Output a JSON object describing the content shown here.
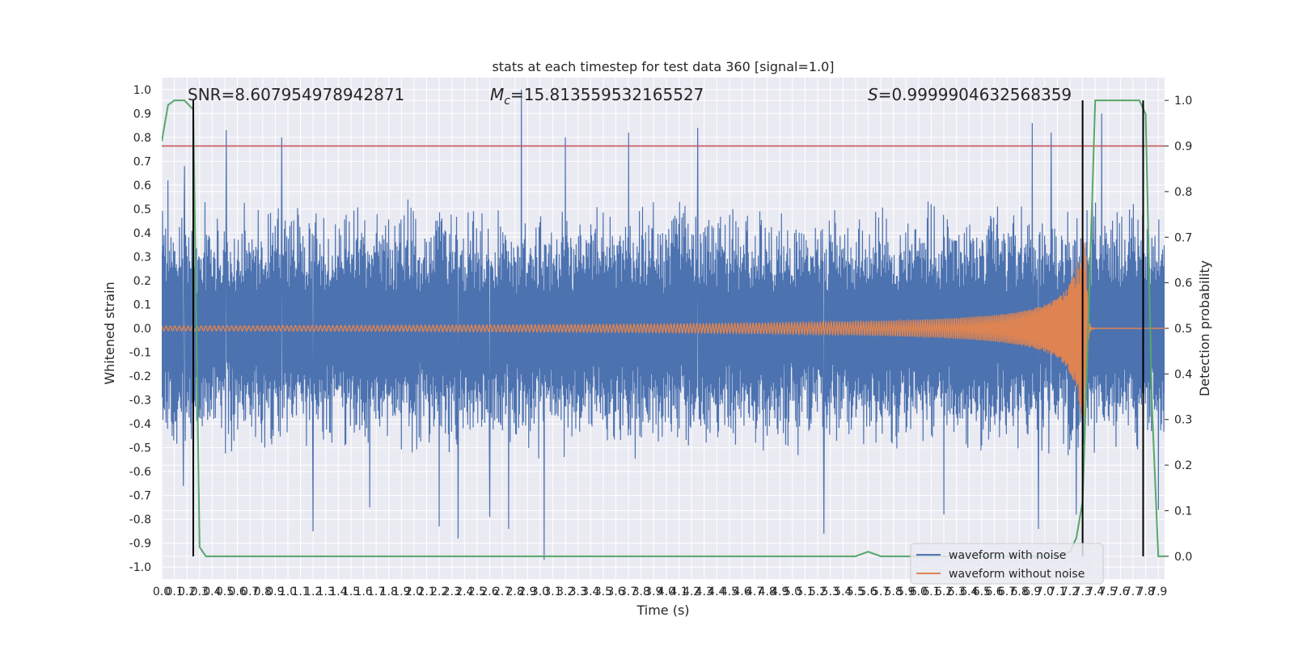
{
  "chart_data": {
    "type": "line",
    "title": "stats at each timestep for test data 360 [signal=1.0]",
    "xlabel": "Time (s)",
    "ylabel": "Whitened strain",
    "y2label": "Detection probability",
    "xlim": [
      0.0,
      7.95
    ],
    "ylim": [
      -1.05,
      1.05
    ],
    "y2lim": [
      -0.05,
      1.05
    ],
    "grid": true,
    "legend_position": "lower-right",
    "x_ticks": [
      "0.0",
      "0.1",
      "0.2",
      "0.3",
      "0.4",
      "0.5",
      "0.6",
      "0.7",
      "0.8",
      "0.9",
      "1.0",
      "1.1",
      "1.2",
      "1.3",
      "1.4",
      "1.5",
      "1.6",
      "1.7",
      "1.8",
      "1.9",
      "2.0",
      "2.1",
      "2.2",
      "2.3",
      "2.4",
      "2.5",
      "2.6",
      "2.7",
      "2.8",
      "2.9",
      "3.0",
      "3.1",
      "3.2",
      "3.3",
      "3.4",
      "3.5",
      "3.6",
      "3.7",
      "3.8",
      "3.9",
      "4.0",
      "4.1",
      "4.2",
      "4.3",
      "4.4",
      "4.5",
      "4.6",
      "4.7",
      "4.8",
      "4.9",
      "5.0",
      "5.1",
      "5.2",
      "5.3",
      "5.4",
      "5.5",
      "5.6",
      "5.7",
      "5.8",
      "5.9",
      "6.0",
      "6.1",
      "6.2",
      "6.3",
      "6.4",
      "6.5",
      "6.6",
      "6.7",
      "6.8",
      "6.9",
      "7.0",
      "7.1",
      "7.2",
      "7.3",
      "7.4",
      "7.5",
      "7.6",
      "7.7",
      "7.8",
      "7.9"
    ],
    "y_ticks": [
      "1.0",
      "0.9",
      "0.8",
      "0.7",
      "0.6",
      "0.5",
      "0.4",
      "0.3",
      "0.2",
      "0.1",
      "0.0",
      "-0.1",
      "-0.2",
      "-0.3",
      "-0.4",
      "-0.5",
      "-0.6",
      "-0.7",
      "-0.8",
      "-0.9",
      "-1.0"
    ],
    "y2_ticks": [
      "1.0",
      "0.9",
      "0.8",
      "0.7",
      "0.6",
      "0.5",
      "0.4",
      "0.3",
      "0.2",
      "0.1",
      "0.0"
    ],
    "annotations": {
      "snr": "SNR=8.607954978942871",
      "mc_symbol": "M",
      "mc_sub": "c",
      "mc_value": "=15.813559532165527",
      "s_symbol": "S",
      "s_value": "=0.9999904632568359"
    },
    "series": [
      {
        "name": "waveform with noise",
        "color": "#4c72b0",
        "style": "noise",
        "typical_peak_range": [
          0.25,
          0.55
        ],
        "peaks": [
          {
            "x": 0.05,
            "y": 0.62
          },
          {
            "x": 0.17,
            "y": -0.66
          },
          {
            "x": 0.18,
            "y": 0.68
          },
          {
            "x": 0.51,
            "y": 0.83
          },
          {
            "x": 0.95,
            "y": 0.8
          },
          {
            "x": 1.2,
            "y": -0.85
          },
          {
            "x": 1.65,
            "y": -0.75
          },
          {
            "x": 2.2,
            "y": -0.83
          },
          {
            "x": 2.35,
            "y": -0.88
          },
          {
            "x": 2.6,
            "y": -0.79
          },
          {
            "x": 2.75,
            "y": -0.84
          },
          {
            "x": 2.85,
            "y": 1.0
          },
          {
            "x": 3.03,
            "y": -0.97
          },
          {
            "x": 3.2,
            "y": 0.8
          },
          {
            "x": 3.7,
            "y": 0.82
          },
          {
            "x": 4.25,
            "y": 0.84
          },
          {
            "x": 5.25,
            "y": -0.86
          },
          {
            "x": 6.2,
            "y": -0.78
          },
          {
            "x": 6.9,
            "y": 0.86
          },
          {
            "x": 6.95,
            "y": -0.84
          },
          {
            "x": 7.05,
            "y": 0.82
          },
          {
            "x": 7.25,
            "y": -0.78
          },
          {
            "x": 7.45,
            "y": 0.9
          },
          {
            "x": 7.9,
            "y": -0.76
          }
        ]
      },
      {
        "name": "waveform without noise",
        "color": "#dd8452",
        "style": "chirp",
        "start_amplitude": 0.01,
        "peak_amplitude": 0.38,
        "merger_time": 7.33
      },
      {
        "name": "",
        "color": "#55a868",
        "axis": "right",
        "x": [
          0.0,
          0.05,
          0.1,
          0.18,
          0.25,
          0.3,
          0.35,
          0.4,
          5.5,
          5.6,
          5.7,
          7.1,
          7.2,
          7.25,
          7.3,
          7.35,
          7.4,
          7.75,
          7.8,
          7.85,
          7.9,
          7.95
        ],
        "y": [
          0.91,
          0.99,
          1.0,
          1.0,
          0.98,
          0.02,
          0.0,
          0.0,
          0.0,
          0.01,
          0.0,
          0.0,
          0.01,
          0.04,
          0.12,
          0.55,
          1.0,
          1.0,
          0.97,
          0.33,
          0.0,
          0.0
        ]
      }
    ],
    "threshold_line": {
      "y2": 0.9,
      "color": "#c44e52"
    },
    "vertical_lines": {
      "x": [
        0.25,
        7.3,
        7.78
      ],
      "color": "#000000"
    }
  }
}
